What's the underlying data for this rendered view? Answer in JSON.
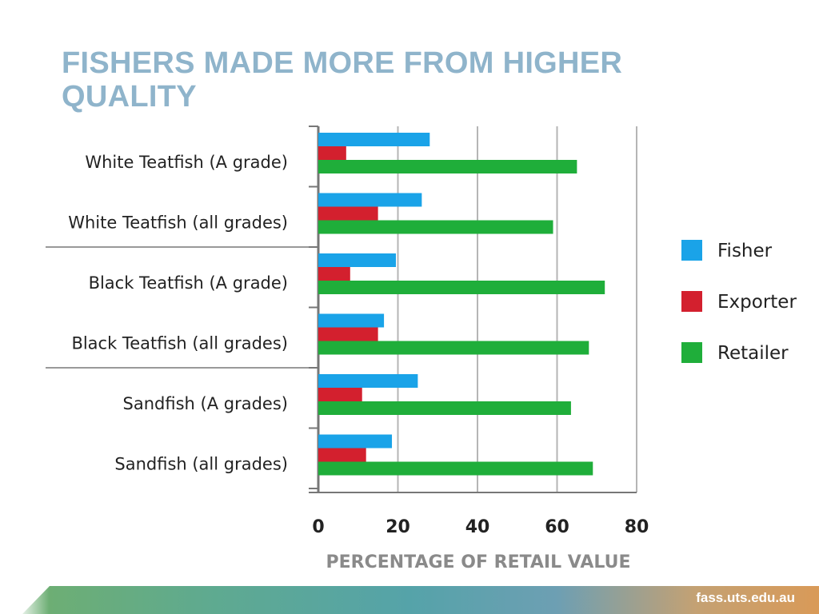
{
  "slide": {
    "title": "FISHERS MADE MORE FROM HIGHER QUALITY",
    "footer": "fass.uts.edu.au"
  },
  "colors": {
    "fisher": "#1aa3e8",
    "exporter": "#d3202e",
    "retailer": "#1fae3a",
    "title": "#8fb4cb",
    "grid": "#b5b5b5"
  },
  "chart_data": {
    "type": "bar",
    "orientation": "horizontal",
    "title": "FISHERS MADE MORE FROM HIGHER QUALITY",
    "xlabel": "PERCENTAGE OF RETAIL VALUE",
    "ylabel": "",
    "xlim": [
      0,
      80
    ],
    "xticks": [
      0,
      20,
      40,
      60,
      80
    ],
    "grid": "vertical",
    "legend": "right",
    "categories": [
      "White Teatfish (A grade)",
      "White Teatfish (all grades)",
      "Black Teatfish (A grade)",
      "Black Teatfish (all grades)",
      "Sandfish (A grades)",
      "Sandfish (all grades)"
    ],
    "series": [
      {
        "name": "Fisher",
        "values": [
          28,
          26,
          19.5,
          16.5,
          25,
          18.5
        ]
      },
      {
        "name": "Exporter",
        "values": [
          7,
          15,
          8,
          15,
          11,
          12
        ]
      },
      {
        "name": "Retailer",
        "values": [
          65,
          59,
          72,
          68,
          63.5,
          69
        ]
      }
    ]
  }
}
